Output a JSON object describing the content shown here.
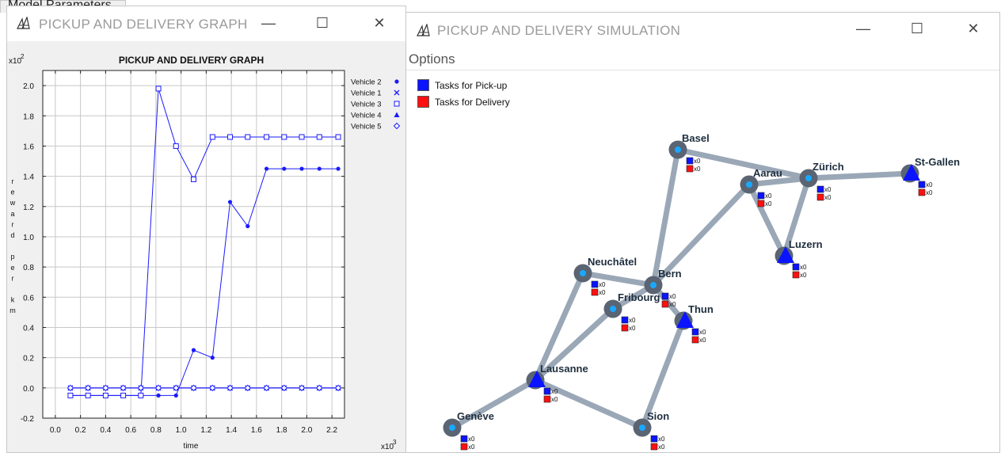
{
  "model_parameters": {
    "title": "Model Parameters"
  },
  "graph_window": {
    "title": "PICKUP AND DELIVERY GRAPH",
    "chart_title": "PICKUP AND DELIVERY GRAPH",
    "y_multiplier": "x10",
    "y_multiplier_exp": "2",
    "x_multiplier": "x10",
    "x_multiplier_exp": "3",
    "ylabel_chars": [
      "r",
      "e",
      "w",
      "a",
      "r",
      "d",
      "",
      "p",
      "e",
      "r",
      "",
      "k",
      "m"
    ],
    "controls": {
      "minimize": "—",
      "maximize": "☐",
      "close": "✕"
    }
  },
  "chart_data": {
    "type": "line",
    "xlabel": "time",
    "ylabel": "reward per km",
    "xlim": [
      -0.1,
      2.3
    ],
    "ylim": [
      -0.2,
      2.1
    ],
    "x_ticks": [
      "0.0",
      "0.2",
      "0.4",
      "0.6",
      "0.8",
      "1.0",
      "1.2",
      "1.4",
      "1.6",
      "1.8",
      "2.0",
      "2.2"
    ],
    "y_ticks": [
      "-0.2",
      "0.0",
      "0.2",
      "0.4",
      "0.6",
      "0.8",
      "1.0",
      "1.2",
      "1.4",
      "1.6",
      "1.8",
      "2.0"
    ],
    "grid": true,
    "legend_position": "right",
    "series": [
      {
        "name": "Vehicle 2",
        "marker": "dot",
        "color": "#1a1aff",
        "x": [
          0.12,
          0.26,
          0.4,
          0.54,
          0.68,
          0.82,
          0.96,
          1.1,
          1.25,
          1.39,
          1.53,
          1.68,
          1.82,
          1.96,
          2.1,
          2.25
        ],
        "y": [
          -0.05,
          -0.05,
          -0.05,
          -0.05,
          -0.05,
          -0.05,
          -0.05,
          0.25,
          0.2,
          1.23,
          1.07,
          1.45,
          1.45,
          1.45,
          1.45,
          1.45
        ]
      },
      {
        "name": "Vehicle 1",
        "marker": "x",
        "color": "#1a1aff",
        "x": [
          0.12,
          0.26,
          0.4,
          0.54,
          0.68,
          0.82,
          0.96,
          1.1,
          1.25,
          1.39,
          1.53,
          1.68,
          1.82,
          1.96,
          2.1,
          2.25
        ],
        "y": [
          0,
          0,
          0,
          0,
          0,
          0,
          0,
          0,
          0,
          0,
          0,
          0,
          0,
          0,
          0,
          0
        ]
      },
      {
        "name": "Vehicle 3",
        "marker": "square",
        "color": "#1a1aff",
        "x": [
          0.12,
          0.26,
          0.4,
          0.54,
          0.68,
          0.82,
          0.96,
          1.1,
          1.25,
          1.39,
          1.53,
          1.68,
          1.82,
          1.96,
          2.1,
          2.25
        ],
        "y": [
          -0.05,
          -0.05,
          -0.05,
          -0.05,
          -0.05,
          1.98,
          1.6,
          1.38,
          1.66,
          1.66,
          1.66,
          1.66,
          1.66,
          1.66,
          1.66,
          1.66
        ]
      },
      {
        "name": "Vehicle 4",
        "marker": "triangle",
        "color": "#1a1aff",
        "x": [
          0.12,
          0.26,
          0.4,
          0.54,
          0.68,
          0.82,
          0.96,
          1.1,
          1.25,
          1.39,
          1.53,
          1.68,
          1.82,
          1.96,
          2.1,
          2.25
        ],
        "y": [
          0,
          0,
          0,
          0,
          0,
          0,
          0,
          0,
          0,
          0,
          0,
          0,
          0,
          0,
          0,
          0
        ]
      },
      {
        "name": "Vehicle 5",
        "marker": "diamond",
        "color": "#1a1aff",
        "x": [
          0.12,
          0.26,
          0.4,
          0.54,
          0.68,
          0.82,
          0.96,
          1.1,
          1.25,
          1.39,
          1.53,
          1.68,
          1.82,
          1.96,
          2.1,
          2.25
        ],
        "y": [
          0,
          0,
          0,
          0,
          0,
          0,
          0,
          0,
          0,
          0,
          0,
          0,
          0,
          0,
          0,
          0
        ]
      }
    ]
  },
  "sim_window": {
    "title": "PICKUP AND DELIVERY SIMULATION",
    "menu_options": "Options",
    "controls": {
      "minimize": "—",
      "maximize": "☐",
      "close": "✕"
    },
    "legend": [
      {
        "label": "Tasks for Pick-up",
        "color": "#0a14ff"
      },
      {
        "label": "Tasks for Delivery",
        "color": "#ff1010"
      }
    ],
    "cities": [
      {
        "name": "Basel",
        "pickup": "x0",
        "delivery": "x0"
      },
      {
        "name": "Zürich",
        "pickup": "x0",
        "delivery": "x0"
      },
      {
        "name": "St-Gallen",
        "pickup": "x0",
        "delivery": "x0"
      },
      {
        "name": "Aarau",
        "pickup": "x0",
        "delivery": "x0"
      },
      {
        "name": "Luzern",
        "pickup": "x0",
        "delivery": "x0"
      },
      {
        "name": "Neuchâtel",
        "pickup": "x0",
        "delivery": "x0"
      },
      {
        "name": "Bern",
        "pickup": "x0",
        "delivery": "x0"
      },
      {
        "name": "Fribourg",
        "pickup": "x0",
        "delivery": "x0"
      },
      {
        "name": "Thun",
        "pickup": "x0",
        "delivery": "x0"
      },
      {
        "name": "Lausanne",
        "pickup": "x0",
        "delivery": "x0"
      },
      {
        "name": "Genève",
        "pickup": "x0",
        "delivery": "x0"
      },
      {
        "name": "Sion",
        "pickup": "x0",
        "delivery": "x0"
      }
    ],
    "road_color": "#9aa7b6",
    "node_color": "#5a6472",
    "node_center_color": "#1aa8ff",
    "vehicle_color": "#0a14ff"
  }
}
